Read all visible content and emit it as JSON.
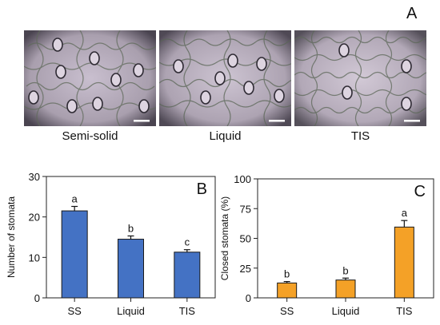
{
  "panel_a": {
    "letter": "A",
    "images": [
      {
        "caption": "Semi-solid"
      },
      {
        "caption": "Liquid"
      },
      {
        "caption": "TIS"
      }
    ]
  },
  "chart_data": [
    {
      "type": "bar",
      "panel_letter": "B",
      "categories": [
        "SS",
        "Liquid",
        "TIS"
      ],
      "values": [
        21.5,
        14.5,
        11.3
      ],
      "errors": [
        1.1,
        0.8,
        0.6
      ],
      "significance_letters": [
        "a",
        "b",
        "c"
      ],
      "ylabel": "Number  of stomata",
      "xlabel": "",
      "ylim": [
        0,
        30
      ],
      "yticks": [
        0,
        10,
        20,
        30
      ],
      "bar_color": "#4472C4",
      "grid": false
    },
    {
      "type": "bar",
      "panel_letter": "C",
      "categories": [
        "SS",
        "Liquid",
        "TIS"
      ],
      "values": [
        12.5,
        15.0,
        59.5
      ],
      "errors": [
        1.2,
        1.6,
        5.5
      ],
      "significance_letters": [
        "b",
        "b",
        "a"
      ],
      "ylabel": "Closed stomata (%)",
      "xlabel": "",
      "ylim": [
        0,
        100
      ],
      "yticks": [
        0,
        25,
        50,
        75,
        100
      ],
      "bar_color": "#F4A127",
      "grid": false
    }
  ]
}
